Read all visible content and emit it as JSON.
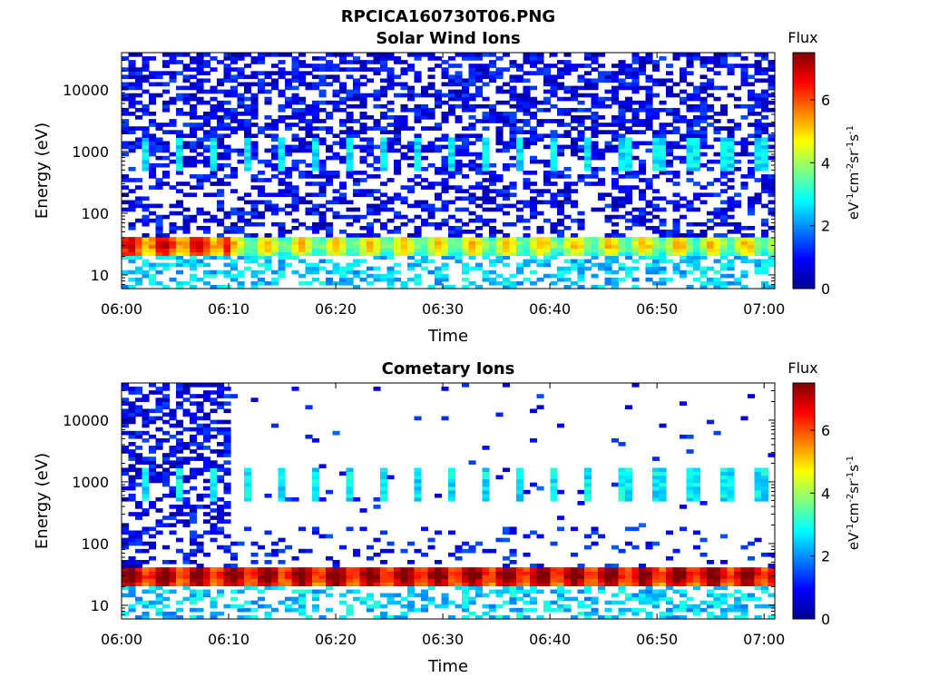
{
  "figure": {
    "title": "RPCICA160730T06.PNG"
  },
  "chart_data": [
    {
      "type": "heatmap",
      "title": "Solar Wind Ions",
      "xlabel": "Time",
      "ylabel": "Energy (eV)",
      "x_ticks": [
        "06:00",
        "06:10",
        "06:20",
        "06:30",
        "06:40",
        "06:50",
        "07:00"
      ],
      "x_range_minutes": [
        0,
        61
      ],
      "y_scale": "log",
      "y_ticks": [
        10,
        100,
        1000,
        10000
      ],
      "y_tick_labels": [
        "10",
        "100",
        "1000",
        "10000"
      ],
      "y_range": [
        6,
        40000
      ],
      "colormap": "jet",
      "colorbar": {
        "title": "Flux",
        "label": "eV-1cm-2sr-1s-1",
        "range": [
          0,
          7.5
        ],
        "ticks": [
          0,
          2,
          4,
          6
        ],
        "tick_labels": [
          "0",
          "2",
          "4",
          "6"
        ]
      },
      "features": {
        "dense_noise_until_min": 61,
        "low_energy_band_eV": [
          22,
          40
        ],
        "low_energy_band_peak_flux": 6.0,
        "low_energy_band_peak_until_min": 10,
        "mid_energy_bursts_eV": [
          500,
          1800
        ],
        "mid_energy_burst_period_min": 3.2
      }
    },
    {
      "type": "heatmap",
      "title": "Cometary Ions",
      "xlabel": "Time",
      "ylabel": "Energy (eV)",
      "x_ticks": [
        "06:00",
        "06:10",
        "06:20",
        "06:30",
        "06:40",
        "06:50",
        "07:00"
      ],
      "x_range_minutes": [
        0,
        61
      ],
      "y_scale": "log",
      "y_ticks": [
        10,
        100,
        1000,
        10000
      ],
      "y_tick_labels": [
        "10",
        "100",
        "1000",
        "10000"
      ],
      "y_range": [
        6,
        40000
      ],
      "colormap": "jet",
      "colorbar": {
        "title": "Flux",
        "label": "eV-1cm-2sr-1s-1",
        "range": [
          0,
          7.5
        ],
        "ticks": [
          0,
          2,
          4,
          6
        ],
        "tick_labels": [
          "0",
          "2",
          "4",
          "6"
        ]
      },
      "features": {
        "dense_noise_until_min": 10,
        "low_energy_band_eV": [
          22,
          40
        ],
        "low_energy_band_peak_flux": 6.8,
        "low_energy_band_peak_until_min": 61,
        "mid_energy_bursts_eV": [
          500,
          1800
        ],
        "mid_energy_burst_period_min": 3.2
      }
    }
  ]
}
